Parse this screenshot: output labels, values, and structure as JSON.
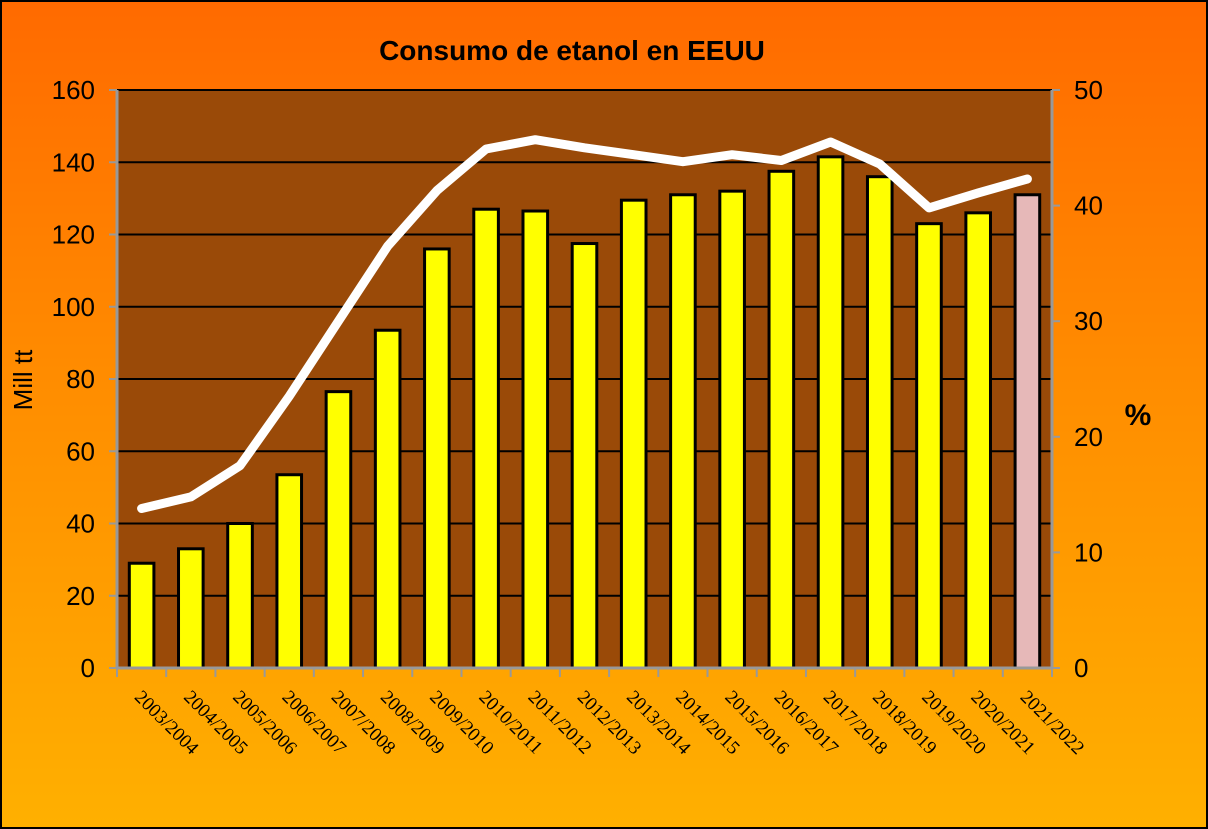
{
  "chart_data": {
    "type": "bar",
    "title": "Consumo de etanol en EEUU",
    "ylabel": "Mill tt",
    "y2label": "%",
    "ylim": [
      0,
      160
    ],
    "y2lim": [
      0,
      50
    ],
    "yticks": [
      "0",
      "20",
      "40",
      "60",
      "80",
      "100",
      "120",
      "140",
      "160"
    ],
    "y2ticks": [
      "0",
      "10",
      "20",
      "30",
      "40",
      "50"
    ],
    "grid": true,
    "categories": [
      "2003/2004",
      "2004/2005",
      "2005/2006",
      "2006/2007",
      "2007/2008",
      "2008/2009",
      "2009/2010",
      "2010/2011",
      "2011/2012",
      "2012/2013",
      "2013/2014",
      "2014/2015",
      "2015/2016",
      "2016/2017",
      "2017/2018",
      "2018/2019",
      "2019/2020",
      "2020/2021",
      "2021/2022"
    ],
    "series": [
      {
        "type": "bar",
        "axis": "left",
        "values": [
          29,
          33,
          40,
          53.5,
          76.5,
          93.5,
          116,
          127,
          126.5,
          117.5,
          129.5,
          131,
          132,
          137.5,
          141.5,
          136,
          123,
          126,
          131
        ],
        "color": "#ffff00",
        "highlight_last_color": "#e6b8b8"
      },
      {
        "type": "line",
        "axis": "right",
        "values": [
          13.8,
          14.8,
          17.5,
          23.5,
          30,
          36.5,
          41.3,
          44.9,
          45.7,
          45.0,
          44.4,
          43.8,
          44.4,
          43.9,
          45.5,
          43.6,
          39.8,
          41.1,
          42.3
        ],
        "color": "#ffffff"
      }
    ],
    "colors": {
      "plot_bg": "#9a4a08",
      "frame_top": "#ff6a00",
      "frame_bottom": "#ffb000",
      "gridline": "#000000",
      "axis": "#999999"
    }
  }
}
